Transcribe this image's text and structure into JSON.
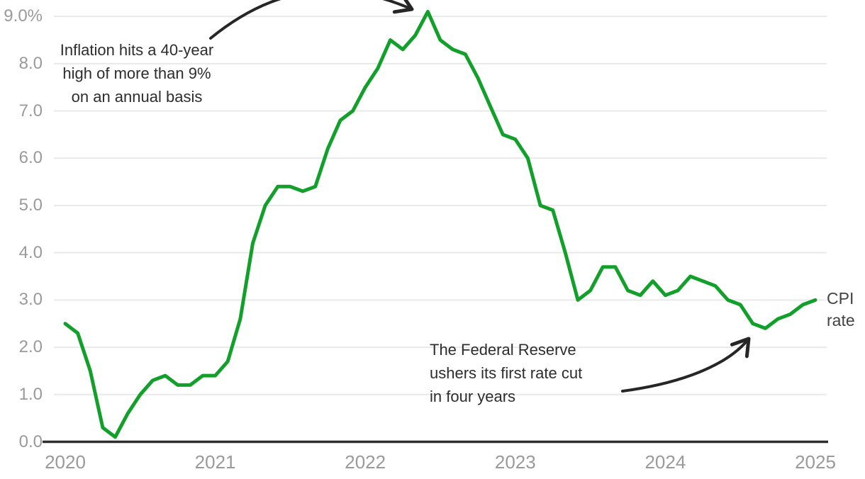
{
  "chart_data": {
    "type": "line",
    "unit": "percent",
    "grid": "horizontal-only",
    "legend_position": "right-of-line-end",
    "x_range": {
      "start": "Jan 2020",
      "end": "Jan 2025",
      "step": "monthly"
    },
    "series": [
      {
        "name": "CPI rate",
        "values": [
          2.5,
          2.3,
          1.5,
          0.3,
          0.1,
          0.6,
          1.0,
          1.3,
          1.4,
          1.2,
          1.2,
          1.4,
          1.4,
          1.7,
          2.6,
          4.2,
          5.0,
          5.4,
          5.4,
          5.3,
          5.4,
          6.2,
          6.8,
          7.0,
          7.5,
          7.9,
          8.5,
          8.3,
          8.6,
          9.1,
          8.5,
          8.3,
          8.2,
          7.7,
          7.1,
          6.5,
          6.4,
          6.0,
          5.0,
          4.9,
          4.0,
          3.0,
          3.2,
          3.7,
          3.7,
          3.2,
          3.1,
          3.4,
          3.1,
          3.2,
          3.5,
          3.4,
          3.3,
          3.0,
          2.9,
          2.5,
          2.4,
          2.6,
          2.7,
          2.9,
          3.0
        ]
      }
    ],
    "x_axis": {
      "ticks": [
        {
          "label": "2020",
          "month_index": 0
        },
        {
          "label": "2021",
          "month_index": 12
        },
        {
          "label": "2022",
          "month_index": 24
        },
        {
          "label": "2023",
          "month_index": 36
        },
        {
          "label": "2024",
          "month_index": 48
        },
        {
          "label": "2025",
          "month_index": 60
        }
      ]
    },
    "y_axis": {
      "ticks": [
        {
          "label": "9.0%",
          "value": 9
        },
        {
          "label": "8.0",
          "value": 8
        },
        {
          "label": "7.0",
          "value": 7
        },
        {
          "label": "6.0",
          "value": 6
        },
        {
          "label": "5.0",
          "value": 5
        },
        {
          "label": "4.0",
          "value": 4
        },
        {
          "label": "3.0",
          "value": 3
        },
        {
          "label": "2.0",
          "value": 2
        },
        {
          "label": "1.0",
          "value": 1
        },
        {
          "label": "0.0",
          "value": 0
        }
      ]
    },
    "ylim": [
      0,
      9.3
    ]
  },
  "annotations": {
    "peak": {
      "lines": [
        "Inflation hits a 40-year",
        "high of more than 9%",
        "on an annual basis"
      ],
      "points_to": "Jun 2022 peak (9.1%)"
    },
    "rate_cut": {
      "lines": [
        "The Federal Reserve",
        "ushers its first rate cut",
        "in four years"
      ],
      "points_to": "Sep 2024 low (2.4%)"
    }
  },
  "series_label": {
    "lines": [
      "CPI",
      "rate"
    ]
  },
  "colors": {
    "line": "#12a02b",
    "grid": "#e9e9e9",
    "axis": "#2d2d2d",
    "tick_label": "#9a9a9a",
    "annotation_text": "#2d2d2d",
    "arrow": "#262626",
    "series_label_text": "#424242",
    "background": "#ffffff"
  }
}
